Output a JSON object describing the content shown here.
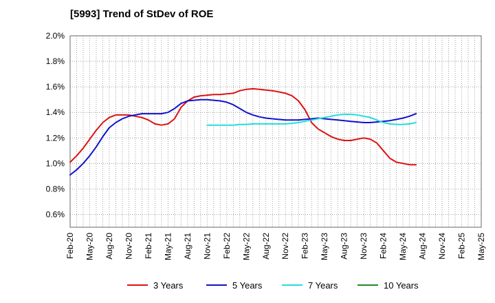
{
  "chart_data": {
    "type": "line",
    "title": "[5993]  Trend of StDev of ROE",
    "xlabel": "",
    "ylabel": "",
    "x_ticks": [
      "Feb-20",
      "May-20",
      "Aug-20",
      "Nov-20",
      "Feb-21",
      "May-21",
      "Aug-21",
      "Nov-21",
      "Feb-22",
      "May-22",
      "Aug-22",
      "Nov-22",
      "Feb-23",
      "May-23",
      "Aug-23",
      "Nov-23",
      "Feb-24",
      "May-24",
      "Aug-24",
      "Nov-24",
      "Feb-25",
      "May-25"
    ],
    "y_ticks": [
      "0.6%",
      "0.8%",
      "1.0%",
      "1.2%",
      "1.4%",
      "1.6%",
      "1.8%",
      "2.0%"
    ],
    "y_tick_values": [
      0.6,
      0.8,
      1.0,
      1.2,
      1.4,
      1.6,
      1.8,
      2.0
    ],
    "ylim": [
      0.5,
      2.0
    ],
    "grid": true,
    "legend_position": "bottom",
    "series": [
      {
        "name": "3 Years",
        "color": "#dd1111",
        "values": [
          1.01,
          1.06,
          1.12,
          1.19,
          1.26,
          1.32,
          1.36,
          1.38,
          1.38,
          1.38,
          1.37,
          1.36,
          1.34,
          1.31,
          1.3,
          1.31,
          1.35,
          1.44,
          1.49,
          1.52,
          1.53,
          1.535,
          1.54,
          1.54,
          1.545,
          1.55,
          1.57,
          1.58,
          1.585,
          1.58,
          1.575,
          1.57,
          1.56,
          1.55,
          1.53,
          1.49,
          1.42,
          1.32,
          1.27,
          1.24,
          1.21,
          1.19,
          1.18,
          1.18,
          1.19,
          1.2,
          1.19,
          1.16,
          1.1,
          1.04,
          1.01,
          1.0,
          0.99,
          0.99
        ]
      },
      {
        "name": "5 Years",
        "color": "#1111cc",
        "values": [
          0.91,
          0.95,
          1.0,
          1.06,
          1.13,
          1.21,
          1.28,
          1.32,
          1.35,
          1.37,
          1.38,
          1.39,
          1.39,
          1.39,
          1.39,
          1.4,
          1.43,
          1.47,
          1.49,
          1.495,
          1.5,
          1.5,
          1.495,
          1.49,
          1.48,
          1.46,
          1.43,
          1.4,
          1.38,
          1.365,
          1.355,
          1.35,
          1.345,
          1.34,
          1.34,
          1.34,
          1.345,
          1.35,
          1.355,
          1.35,
          1.345,
          1.34,
          1.335,
          1.33,
          1.325,
          1.32,
          1.32,
          1.325,
          1.33,
          1.335,
          1.345,
          1.355,
          1.37,
          1.39
        ]
      },
      {
        "name": "7 Years",
        "color": "#22dddd",
        "values": [
          null,
          null,
          null,
          null,
          null,
          null,
          null,
          null,
          null,
          null,
          null,
          null,
          null,
          null,
          null,
          null,
          null,
          null,
          null,
          null,
          null,
          1.3,
          1.3,
          1.3,
          1.3,
          1.3,
          1.305,
          1.305,
          1.31,
          1.31,
          1.31,
          1.31,
          1.31,
          1.31,
          1.315,
          1.32,
          1.33,
          1.34,
          1.35,
          1.36,
          1.37,
          1.38,
          1.385,
          1.385,
          1.38,
          1.37,
          1.36,
          1.34,
          1.32,
          1.31,
          1.305,
          1.305,
          1.31,
          1.32
        ]
      },
      {
        "name": "10 Years",
        "color": "#228822",
        "values": []
      }
    ]
  }
}
